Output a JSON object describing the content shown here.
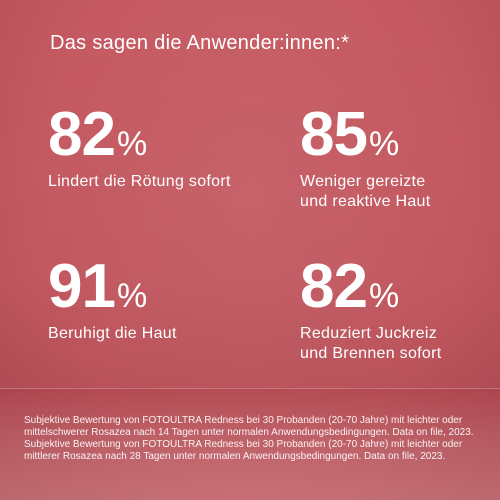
{
  "headline": "Das sagen die Anwender:innen:*",
  "stats": [
    {
      "value": "82",
      "unit": "%",
      "label_line1": "Lindert die Rötung sofort",
      "label_line2": ""
    },
    {
      "value": "85",
      "unit": "%",
      "label_line1": "Weniger gereizte",
      "label_line2": "und reaktive Haut"
    },
    {
      "value": "91",
      "unit": "%",
      "label_line1": "Beruhigt die Haut",
      "label_line2": ""
    },
    {
      "value": "82",
      "unit": "%",
      "label_line1": "Reduziert Juckreiz",
      "label_line2": "und Brennen sofort"
    }
  ],
  "footnotes": [
    "Subjektive Bewertung von FOTOULTRA Redness bei 30 Probanden (20-70 Jahre) mit leichter oder mittelschwerer Rosazea nach 14 Tagen unter normalen Anwendungsbedingungen. Data on file, 2023.",
    "Subjektive Bewertung von FOTOULTRA Redness bei 30 Probanden (20-70 Jahre) mit leichter oder mittlerer Rosazea nach 28 Tagen unter normalen Anwendungsbedingungen. Data on file, 2023."
  ],
  "colors": {
    "background": "#c25860",
    "text": "#ffffff"
  }
}
